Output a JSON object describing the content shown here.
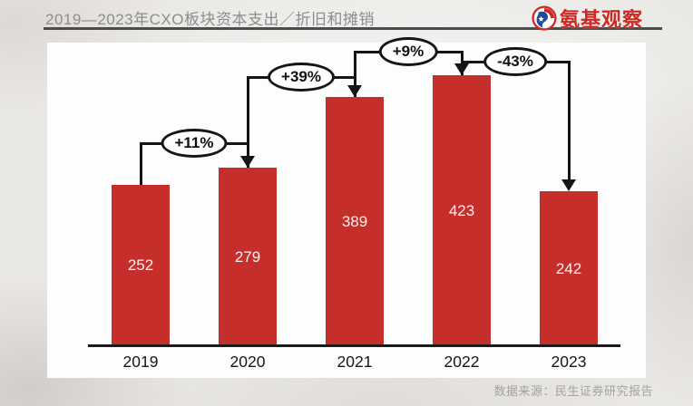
{
  "header": {
    "title": "2019—2023年CXO板块资本支出／折旧和摊销",
    "logo_text": "氨基观察",
    "logo_color": "#ce2824"
  },
  "footer": {
    "source": "数据来源：民生证券研究报告"
  },
  "chart_data": {
    "type": "bar",
    "title": "2019—2023年CXO板块资本支出／折旧和摊销",
    "categories": [
      "2019",
      "2020",
      "2021",
      "2022",
      "2023"
    ],
    "values": [
      252,
      279,
      389,
      423,
      242
    ],
    "annotations": [
      {
        "label": "+11%",
        "from": "2019",
        "to": "2020"
      },
      {
        "label": "+39%",
        "from": "2020",
        "to": "2021"
      },
      {
        "label": "+9%",
        "from": "2021",
        "to": "2022"
      },
      {
        "label": "-43%",
        "from": "2022",
        "to": "2023"
      }
    ],
    "xlabel": "",
    "ylabel": "",
    "ylim": [
      0,
      450
    ],
    "grid": false,
    "legend": "none",
    "bar_color": "#c62e2b",
    "value_label_color": "#ffffff",
    "annotation_style": "ellipse-bubble-with-bracket-arrows"
  }
}
